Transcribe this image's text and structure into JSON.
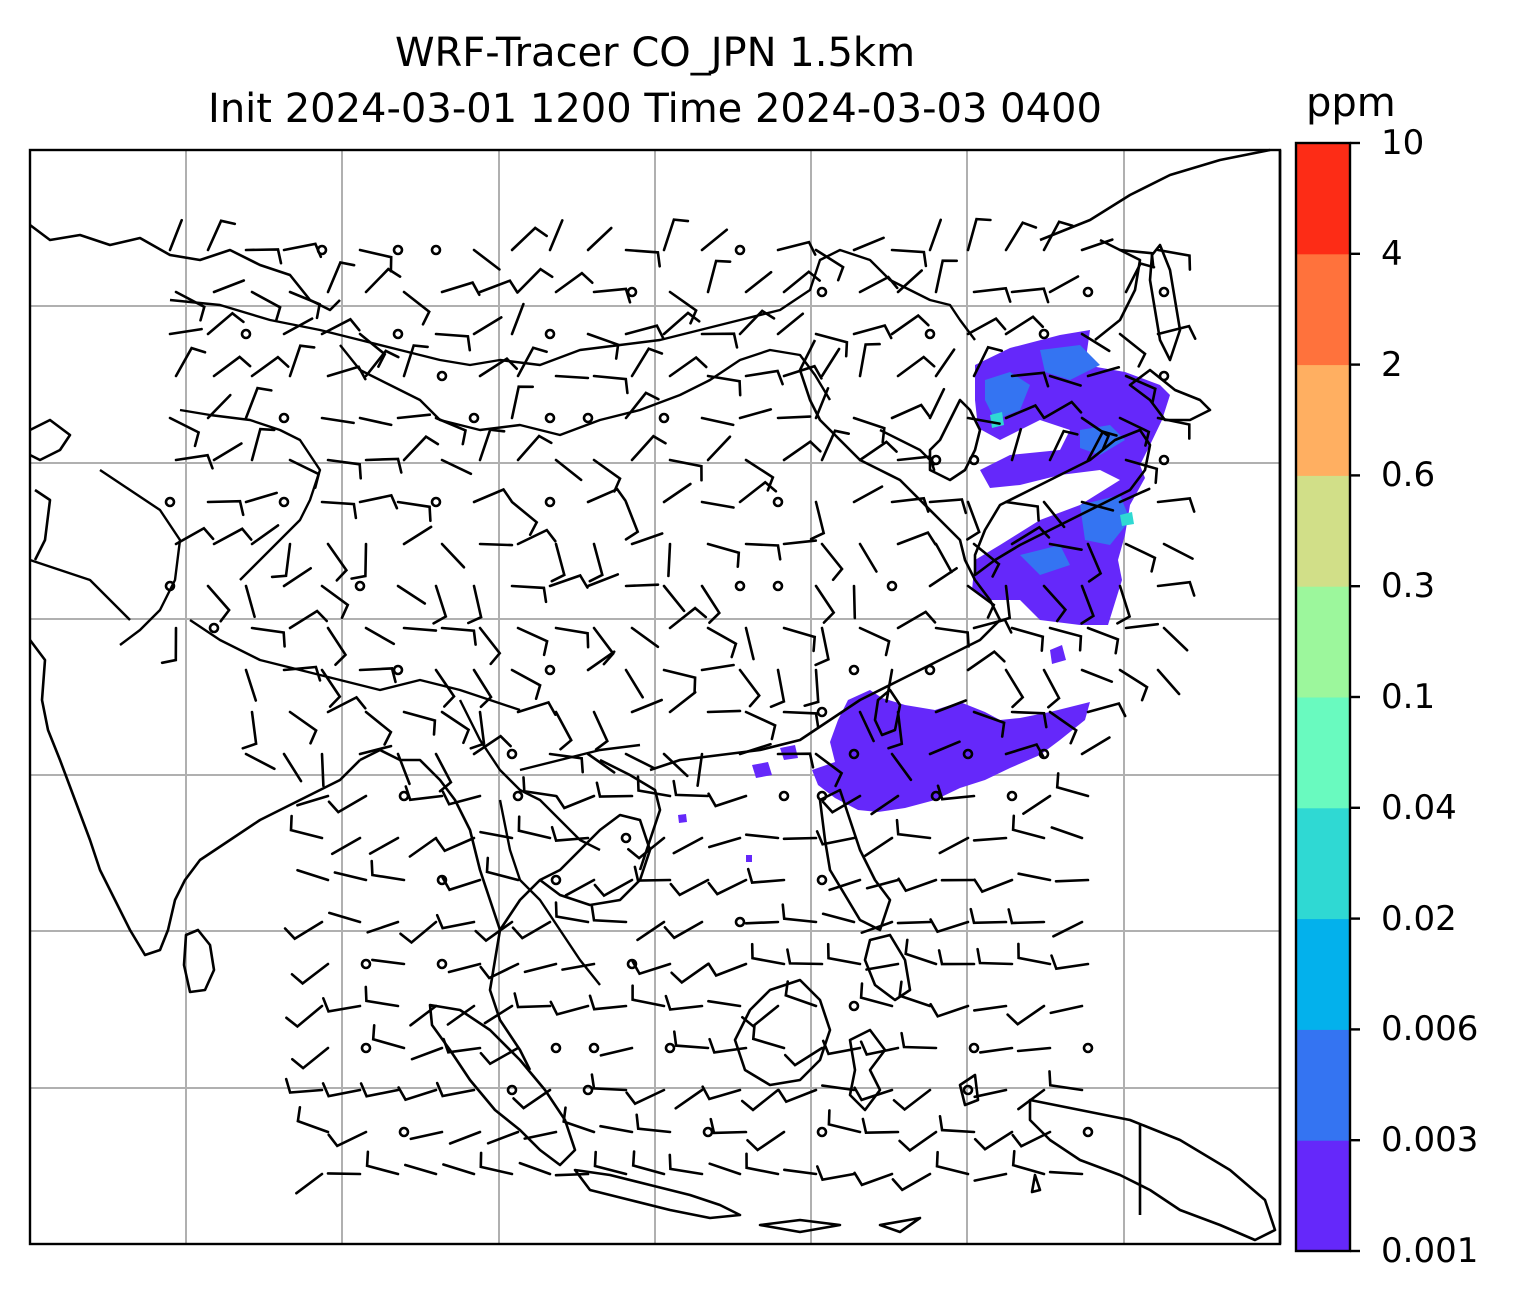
{
  "title": {
    "line1": "WRF-Tracer CO_JPN 1.5km",
    "line2": "Init 2024-03-01 1200 Time 2024-03-03 0400"
  },
  "colorbar": {
    "unit": "ppm",
    "levels": [
      "0.001",
      "0.003",
      "0.006",
      "0.02",
      "0.04",
      "0.1",
      "0.3",
      "0.6",
      "2",
      "4",
      "10"
    ],
    "colors": [
      "#6528fa",
      "#3474f2",
      "#03b1ec",
      "#2fd9d3",
      "#69fabf",
      "#9cf79c",
      "#d1df88",
      "#ffaf61",
      "#ff723c",
      "#fd2c16"
    ]
  },
  "map": {
    "grid": "on",
    "features": [
      "coastlines",
      "borders",
      "wind-barbs",
      "CO-tracer-concentration-shading"
    ]
  }
}
